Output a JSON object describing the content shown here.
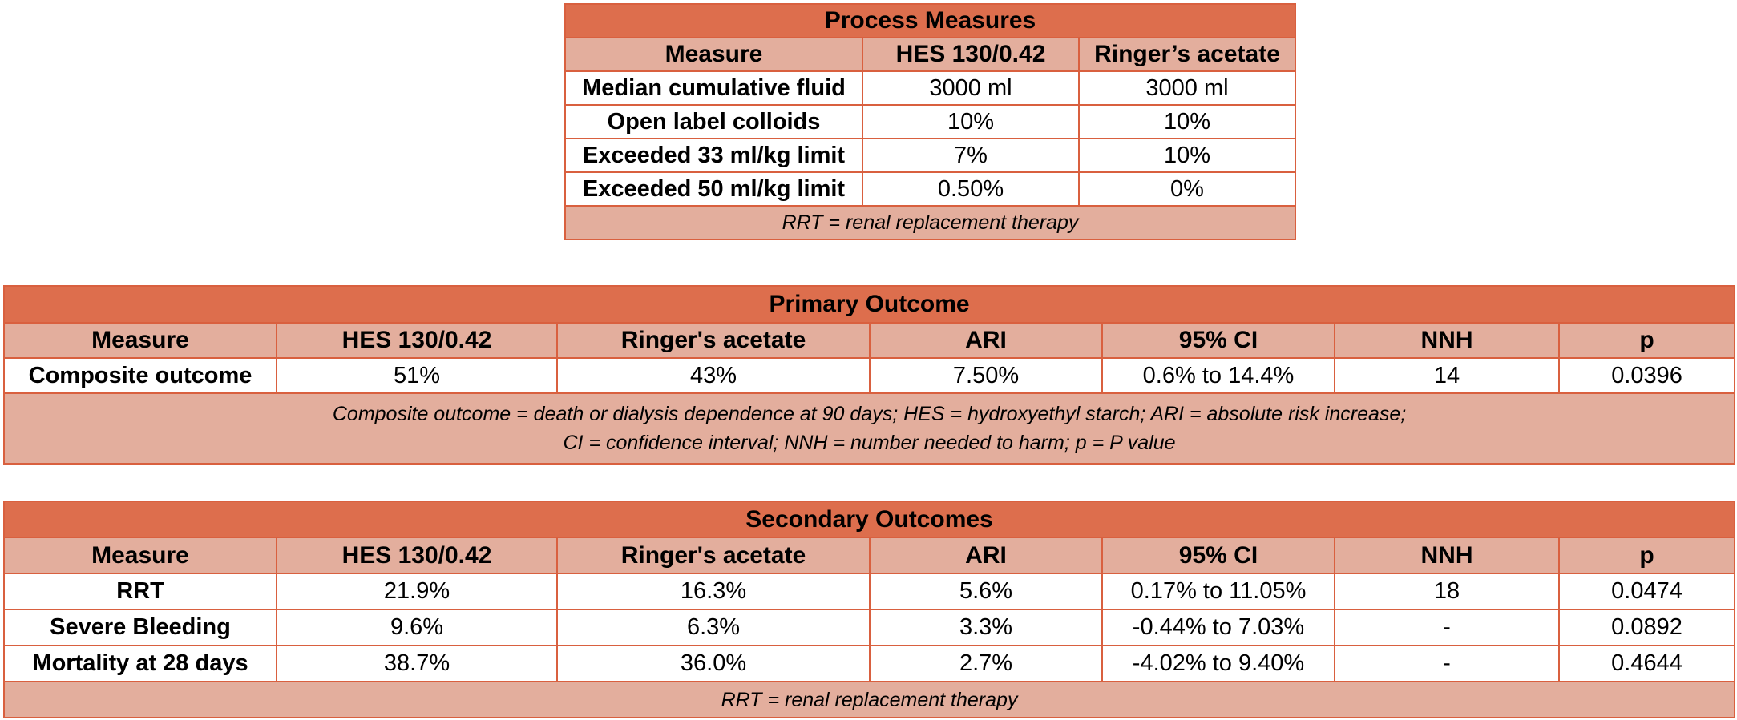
{
  "process_measures": {
    "title": "Process Measures",
    "headers": [
      "Measure",
      "HES 130/0.42",
      "Ringer’s acetate"
    ],
    "rows": [
      [
        "Median cumulative fluid",
        "3000 ml",
        "3000 ml"
      ],
      [
        "Open label colloids",
        "10%",
        "10%"
      ],
      [
        "Exceeded 33 ml/kg limit",
        "7%",
        "10%"
      ],
      [
        "Exceeded 50 ml/kg limit",
        "0.50%",
        "0%"
      ]
    ],
    "note": "RRT = renal replacement therapy"
  },
  "primary_outcome": {
    "title": "Primary Outcome",
    "headers": [
      "Measure",
      "HES 130/0.42",
      "Ringer's acetate",
      "ARI",
      "95% CI",
      "NNH",
      "p"
    ],
    "rows": [
      [
        "Composite outcome",
        "51%",
        "43%",
        "7.50%",
        "0.6% to 14.4%",
        "14",
        "0.0396"
      ]
    ],
    "note_line1": "Composite outcome = death or dialysis dependence at 90 days; HES = hydroxyethyl starch; ARI = absolute risk increase;",
    "note_line2": "CI = confidence interval; NNH = number needed to harm; p = P value"
  },
  "secondary_outcomes": {
    "title": "Secondary Outcomes",
    "headers": [
      "Measure",
      "HES 130/0.42",
      "Ringer's acetate",
      "ARI",
      "95% CI",
      "NNH",
      "p"
    ],
    "rows": [
      [
        "RRT",
        "21.9%",
        "16.3%",
        "5.6%",
        "0.17% to 11.05%",
        "18",
        "0.0474"
      ],
      [
        "Severe Bleeding",
        "9.6%",
        "6.3%",
        "3.3%",
        "-0.44% to 7.03%",
        "-",
        "0.0892"
      ],
      [
        "Mortality at 28 days",
        "38.7%",
        "36.0%",
        "2.7%",
        "-4.02% to 9.40%",
        "-",
        "0.4644"
      ]
    ],
    "note": "RRT = renal replacement therapy"
  }
}
